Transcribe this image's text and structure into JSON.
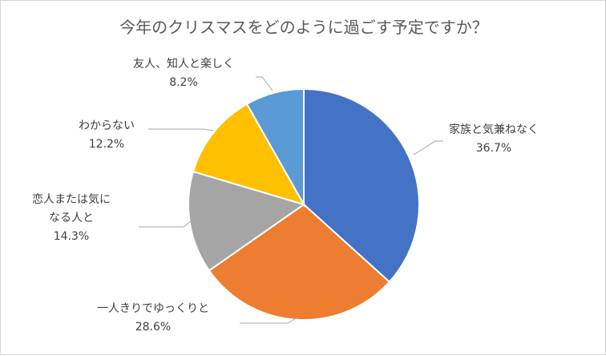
{
  "chart_data": {
    "type": "pie",
    "title": "今年のクリスマスをどのように過ごす予定ですか？",
    "slices": [
      {
        "name": "家族と気兼ねなく",
        "value": 36.7,
        "value_label": "36.7%",
        "color": "#4472C4",
        "label_lines": [
          "家族と気兼ねなく"
        ]
      },
      {
        "name": "一人きりでゆっくりと",
        "value": 28.6,
        "value_label": "28.6%",
        "color": "#ED7D31",
        "label_lines": [
          "一人きりでゆっくりと"
        ]
      },
      {
        "name": "恋人または気になる人と",
        "value": 14.3,
        "value_label": "14.3%",
        "color": "#A5A5A5",
        "label_lines": [
          "恋人または気に",
          "なる人と"
        ]
      },
      {
        "name": "わからない",
        "value": 12.2,
        "value_label": "12.2%",
        "color": "#FFC000",
        "label_lines": [
          "わからない"
        ]
      },
      {
        "name": "友人、知人と楽しく",
        "value": 8.2,
        "value_label": "8.2%",
        "color": "#5B9BD5",
        "label_lines": [
          "友人、知人と楽しく"
        ]
      }
    ],
    "legend": "none",
    "start_angle": "12 o'clock, clockwise"
  }
}
